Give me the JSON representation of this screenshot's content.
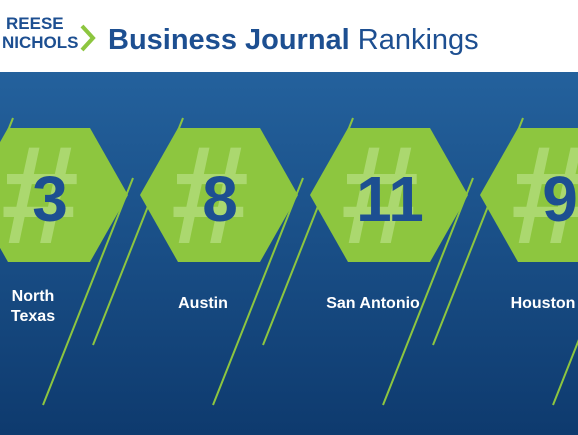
{
  "header": {
    "logo": [
      "REESE",
      "NICHOLS"
    ],
    "title_bold": "Business Journal",
    "title_rest": "Rankings"
  },
  "rankings": [
    {
      "symbol": "#",
      "rank": 3,
      "label": [
        "North",
        "Texas"
      ]
    },
    {
      "symbol": "#",
      "rank": 8,
      "label": [
        "Austin"
      ]
    },
    {
      "symbol": "#",
      "rank": 11,
      "label": [
        "San Antonio"
      ]
    },
    {
      "symbol": "#",
      "rank": 9,
      "label": [
        "Houston"
      ]
    }
  ]
}
